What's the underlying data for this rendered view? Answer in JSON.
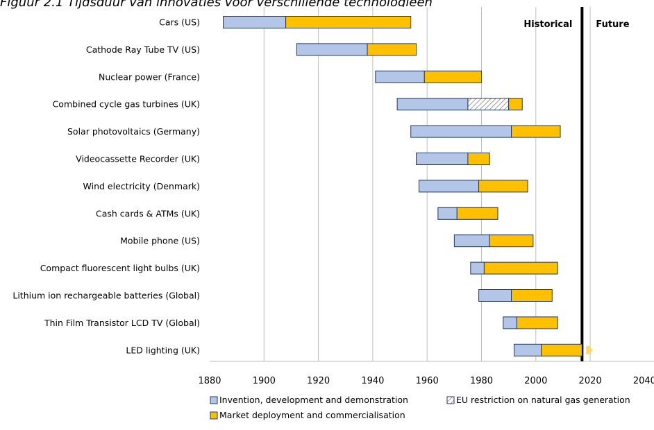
{
  "caption": "Figuur 2.1 Tijdsduur van innovaties voor verschillende technologieën",
  "chart_data": {
    "type": "bar",
    "orientation": "horizontal",
    "title": "",
    "xlabel": "",
    "ylabel": "",
    "xlim": [
      1880,
      2040
    ],
    "xticks": [
      1880,
      1900,
      1920,
      1940,
      1960,
      1980,
      2000,
      2020,
      2040
    ],
    "grid": "vertical",
    "present_year": 2017,
    "regions": {
      "historical": "Historical",
      "future": "Future"
    },
    "colors": {
      "invention": "#b4c6e7",
      "restriction_fill": "#ffffff",
      "restriction_hatch": "#7f7f7f",
      "market": "#ffc000",
      "outline": "#1f3864",
      "future_arrow": "#ffd966"
    },
    "legend": {
      "placement": "bottom",
      "items": [
        {
          "key": "invention",
          "label": "Invention, development and demonstration"
        },
        {
          "key": "restriction",
          "label": "EU restriction on natural gas generation"
        },
        {
          "key": "market",
          "label": "Market deployment and commercialisation"
        }
      ]
    },
    "categories": [
      "Cars (US)",
      "Cathode Ray Tube TV (US)",
      "Nuclear power (France)",
      "Combined cycle gas turbines (UK)",
      "Solar photovoltaics (Germany)",
      "Videocassette Recorder (UK)",
      "Wind electricity (Denmark)",
      "Cash cards & ATMs (UK)",
      "Mobile phone (US)",
      "Compact fluorescent light bulbs (UK)",
      "Lithium ion rechargeable batteries (Global)",
      "Thin Film Transistor LCD TV (Global)",
      "LED lighting (UK)"
    ],
    "series": [
      {
        "name": "Invention, development and demonstration",
        "key": "invention",
        "ranges": [
          [
            1885,
            1908
          ],
          [
            1912,
            1938
          ],
          [
            1941,
            1959
          ],
          [
            1949,
            1975
          ],
          [
            1954,
            1991
          ],
          [
            1956,
            1975
          ],
          [
            1957,
            1979
          ],
          [
            1964,
            1971
          ],
          [
            1970,
            1983
          ],
          [
            1976,
            1981
          ],
          [
            1979,
            1991
          ],
          [
            1988,
            1993
          ],
          [
            1992,
            2002
          ]
        ]
      },
      {
        "name": "EU restriction on natural gas generation",
        "key": "restriction",
        "ranges": [
          null,
          null,
          null,
          [
            1975,
            1990
          ],
          null,
          null,
          null,
          null,
          null,
          null,
          null,
          null,
          null
        ]
      },
      {
        "name": "Market deployment and commercialisation",
        "key": "market",
        "ranges": [
          [
            1908,
            1954
          ],
          [
            1938,
            1956
          ],
          [
            1959,
            1980
          ],
          [
            1990,
            1995
          ],
          [
            1991,
            2009
          ],
          [
            1975,
            1983
          ],
          [
            1979,
            1997
          ],
          [
            1971,
            1986
          ],
          [
            1983,
            1999
          ],
          [
            1981,
            2008
          ],
          [
            1991,
            2006
          ],
          [
            1993,
            2008
          ],
          [
            2002,
            2017
          ]
        ]
      }
    ],
    "future_arrow": {
      "category": "LED lighting (UK)",
      "from": 2017,
      "to": 2021
    }
  }
}
